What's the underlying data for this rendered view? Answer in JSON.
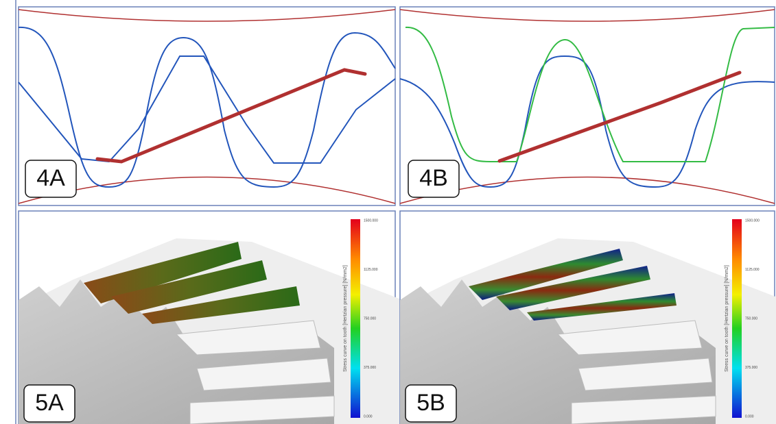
{
  "panels": [
    {
      "label": "4A"
    },
    {
      "label": "4B"
    },
    {
      "label": "5A",
      "colorbar": {
        "title": "Stress curve on tooth [Hertzian pressure] [N/mm2]",
        "ticks": [
          "1500.000",
          "1125.000",
          "750.000",
          "375.000",
          "0.000"
        ]
      }
    },
    {
      "label": "5B",
      "colorbar": {
        "title": "Stress curve on tooth [Hertzian pressure] [N/mm2]",
        "ticks": [
          "1500.000",
          "1125.000",
          "750.000",
          "375.000",
          "0.000"
        ]
      }
    }
  ]
}
